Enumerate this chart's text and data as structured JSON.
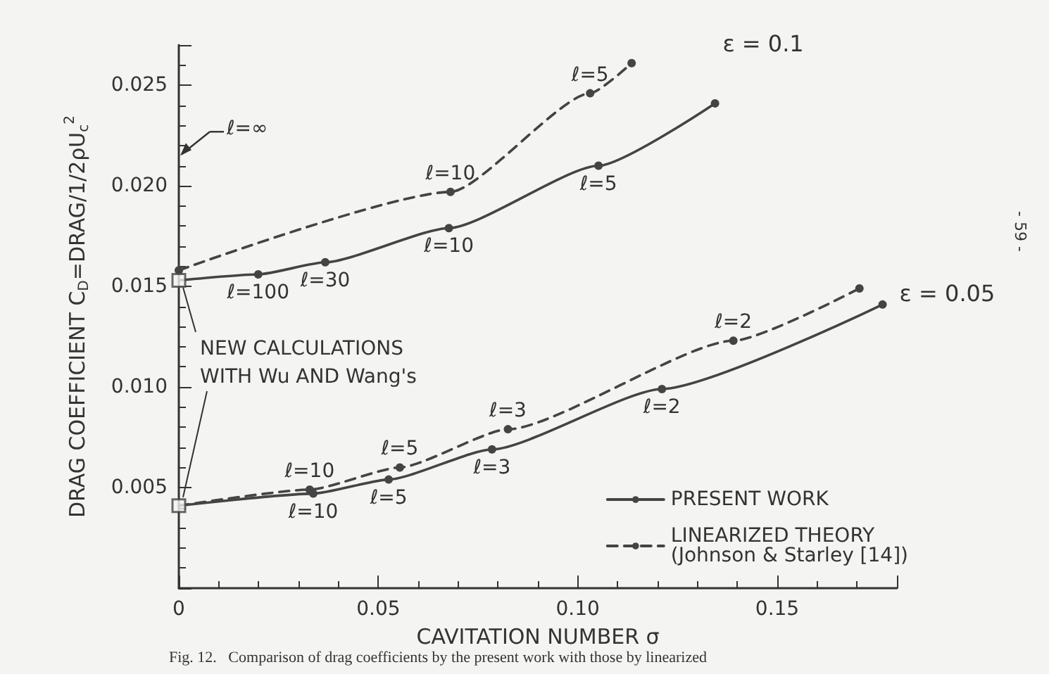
{
  "chart_data": {
    "type": "line",
    "xlabel": "CAVITATION NUMBER σ",
    "ylabel": "DRAG COEFFICIENT C$_{D}$=DRAG/1/2ρU$_{c}$$^{2}$",
    "xlim": [
      0,
      0.18
    ],
    "xticks": [
      0,
      0.05,
      {
        "value": 0.1,
        "label": "0.10"
      },
      0.15
    ],
    "ylim": [
      0,
      0.027
    ],
    "yticks": [
      {
        "value": 0.005,
        "label": "0.005"
      },
      {
        "value": 0.01,
        "label": "0.010"
      },
      {
        "value": 0.015,
        "label": "0.015"
      },
      {
        "value": 0.02,
        "label": "0.020"
      },
      {
        "value": 0.025,
        "label": "0.025"
      }
    ],
    "grid": false,
    "legend": "bottom right",
    "marker": "circle",
    "series": [
      {
        "name": "PRESENT WORK",
        "color": "#444444",
        "line_style": "solid",
        "x": [
          0,
          0.0199,
          0.0367,
          0.0677,
          0.1052,
          0.1344
        ],
        "values": [
          0.0153,
          0.0156,
          0.0162,
          0.0179,
          0.021,
          0.0241
        ]
      },
      {
        "name": "LINEARIZED THEORY\n(Johnson & Starley [14])",
        "color": "#444444",
        "line_style": "dashed",
        "x": [
          0,
          0.0681,
          0.1031,
          0.1135
        ],
        "values": [
          0.0158,
          0.0197,
          0.0246,
          0.0261
        ]
      },
      {
        "color": "#444444",
        "line_style": "solid",
        "x": [
          0,
          0.0337,
          0.0526,
          0.0785,
          0.1211,
          0.1764
        ],
        "values": [
          0.0041,
          0.0047,
          0.0054,
          0.0069,
          0.0099,
          0.0141
        ]
      },
      {
        "color": "#444444",
        "line_style": "dashed",
        "x": [
          0,
          0.0328,
          0.0554,
          0.0825,
          0.139,
          0.1706
        ],
        "values": [
          0.0041,
          0.0049,
          0.006,
          0.0079,
          0.0123,
          0.0149
        ]
      },
      {
        "type": "scatter",
        "marker": "square",
        "color": "#444444",
        "x": [
          0,
          0
        ],
        "values": [
          0.0153,
          0.0041
        ]
      }
    ],
    "annotations": [
      {
        "text": "ℓ=100",
        "x": 0.0199,
        "y": 0.0156
      },
      {
        "text": "ℓ=30",
        "x": 0.0367,
        "y": 0.0162
      },
      {
        "text": "ℓ=10",
        "x": 0.0677,
        "y": 0.0179
      },
      {
        "text": "ℓ=5",
        "x": 0.1052,
        "y": 0.021
      },
      {
        "text": "ℓ=10",
        "x": 0.0681,
        "y": 0.0197
      },
      {
        "text": "ℓ=5",
        "x": 0.1031,
        "y": 0.0246
      },
      {
        "text": "ℓ=10",
        "x": 0.0337,
        "y": 0.0047
      },
      {
        "text": "ℓ=5",
        "x": 0.0526,
        "y": 0.0054
      },
      {
        "text": "ℓ=3",
        "x": 0.0785,
        "y": 0.0069
      },
      {
        "text": "ℓ=2",
        "x": 0.1211,
        "y": 0.0099
      },
      {
        "text": "ℓ=10",
        "x": 0.0328,
        "y": 0.0049
      },
      {
        "text": "ℓ=5",
        "x": 0.0554,
        "y": 0.006
      },
      {
        "text": "ℓ=3",
        "x": 0.0825,
        "y": 0.0079
      },
      {
        "text": "ℓ=2",
        "x": 0.139,
        "y": 0.0123
      },
      {
        "text": "NEW CALCULATIONS\nWITH Wu AND Wang's",
        "x": 0,
        "y": 0.0153
      },
      "ℓ=∞",
      "ε = 0.1",
      "ε = 0.05",
      "Fig. 12.   Comparison of drag coefficients by the present work with those by linearized",
      "- 59 -"
    ]
  }
}
